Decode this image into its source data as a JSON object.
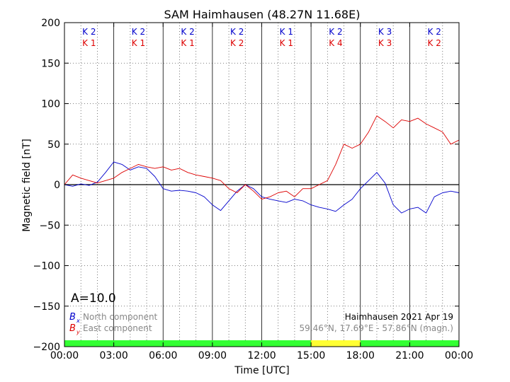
{
  "chart_data": {
    "type": "line",
    "title": "SAM Haimhausen (48.27N 11.68E)",
    "xlabel": "Time [UTC]",
    "ylabel": "Magnetic field [nT]",
    "xlim": [
      0,
      24
    ],
    "ylim": [
      -200,
      200
    ],
    "x_ticks": [
      "00:00",
      "03:00",
      "06:00",
      "09:00",
      "12:00",
      "15:00",
      "18:00",
      "21:00",
      "00:00"
    ],
    "y_ticks": [
      200,
      150,
      100,
      50,
      0,
      -50,
      -100,
      -150,
      -200
    ],
    "grid": true,
    "a_index": "A=10.0",
    "station_info": {
      "line1": "Haimhausen 2021 Apr 19",
      "line2": "59.46°N, 17.69°E - 57.86°N (magn.)"
    },
    "legend": [
      {
        "symbol": "B",
        "sub": "x",
        "text": "North component",
        "color": "#0000cc"
      },
      {
        "symbol": "B",
        "sub": "y",
        "text": "East component",
        "color": "#dd0000"
      }
    ],
    "k_index": {
      "north": [
        "K 2",
        "K 2",
        "K 2",
        "K 2",
        "K 1",
        "K 2",
        "K 3",
        "K 2"
      ],
      "east": [
        "K 1",
        "K 1",
        "K 1",
        "K 2",
        "K 1",
        "K 4",
        "K 3",
        "K 2"
      ]
    },
    "activity_bar": {
      "colors": [
        "#33ff33",
        "#33ff33",
        "#33ff33",
        "#33ff33",
        "#33ff33",
        "#ffff33",
        "#33ff33",
        "#33ff33"
      ]
    },
    "series": [
      {
        "name": "North component",
        "color": "#0000cc",
        "x": [
          0,
          0.5,
          1,
          1.5,
          2,
          2.5,
          3,
          3.5,
          4,
          4.5,
          5,
          5.5,
          6,
          6.5,
          7,
          7.5,
          8,
          8.5,
          9,
          9.5,
          10,
          10.5,
          11,
          11.5,
          12,
          12.5,
          13,
          13.5,
          14,
          14.5,
          15,
          15.5,
          16,
          16.5,
          17,
          17.5,
          18,
          18.5,
          19,
          19.5,
          20,
          20.5,
          21,
          21.5,
          22,
          22.5,
          23,
          23.5,
          24
        ],
        "values": [
          0,
          -2,
          1,
          -1,
          3,
          15,
          28,
          25,
          18,
          22,
          20,
          10,
          -5,
          -8,
          -7,
          -8,
          -10,
          -15,
          -25,
          -32,
          -20,
          -8,
          0,
          -5,
          -15,
          -18,
          -20,
          -22,
          -18,
          -20,
          -25,
          -28,
          -30,
          -33,
          -25,
          -18,
          -5,
          5,
          15,
          2,
          -25,
          -35,
          -30,
          -28,
          -35,
          -15,
          -10,
          -8,
          -10
        ]
      },
      {
        "name": "East component",
        "color": "#dd0000",
        "x": [
          0,
          0.5,
          1,
          1.5,
          2,
          2.5,
          3,
          3.5,
          4,
          4.5,
          5,
          5.5,
          6,
          6.5,
          7,
          7.5,
          8,
          8.5,
          9,
          9.5,
          10,
          10.5,
          11,
          11.5,
          12,
          12.5,
          13,
          13.5,
          14,
          14.5,
          15,
          15.5,
          16,
          16.5,
          17,
          17.5,
          18,
          18.5,
          19,
          19.5,
          20,
          20.5,
          21,
          21.5,
          22,
          22.5,
          23,
          23.5,
          24
        ],
        "values": [
          0,
          12,
          8,
          5,
          2,
          5,
          8,
          15,
          20,
          25,
          22,
          20,
          22,
          18,
          20,
          15,
          12,
          10,
          8,
          5,
          -5,
          -10,
          0,
          -8,
          -18,
          -15,
          -10,
          -8,
          -15,
          -5,
          -5,
          0,
          5,
          25,
          50,
          45,
          50,
          65,
          85,
          78,
          70,
          80,
          78,
          82,
          75,
          70,
          65,
          50,
          55
        ]
      }
    ]
  }
}
